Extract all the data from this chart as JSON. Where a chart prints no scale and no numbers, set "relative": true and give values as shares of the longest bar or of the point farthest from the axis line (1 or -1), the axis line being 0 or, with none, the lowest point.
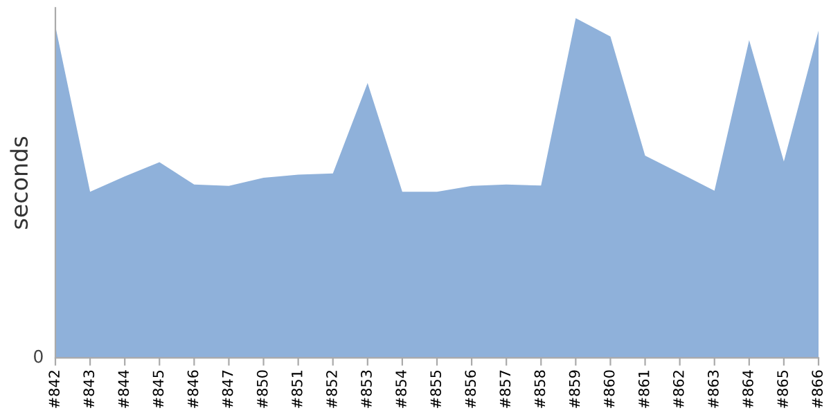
{
  "chart_data": {
    "type": "area",
    "relative": true,
    "ylabel": "seconds",
    "color": "#8fb1da",
    "grid": false,
    "legend": false,
    "annotations": [
      "0"
    ],
    "categories": [
      "#842",
      "#843",
      "#844",
      "#845",
      "#846",
      "#847",
      "#850",
      "#851",
      "#852",
      "#853",
      "#854",
      "#855",
      "#856",
      "#857",
      "#858",
      "#859",
      "#860",
      "#861",
      "#862",
      "#863",
      "#864",
      "#865",
      "#866"
    ],
    "values": [
      0.976,
      0.489,
      0.534,
      0.576,
      0.51,
      0.506,
      0.53,
      0.539,
      0.543,
      0.809,
      0.489,
      0.489,
      0.506,
      0.51,
      0.507,
      1,
      0.946,
      0.595,
      0.544,
      0.492,
      0.935,
      0.578,
      0.963
    ]
  }
}
